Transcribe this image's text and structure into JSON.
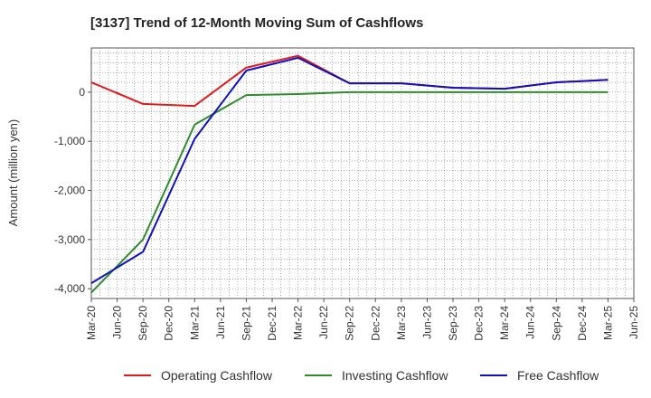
{
  "chart_data": {
    "type": "line",
    "title": "[3137]  Trend of 12-Month Moving Sum of Cashflows",
    "ylabel": "Amount (million yen)",
    "xlabel": "",
    "ylim": [
      -4200,
      900
    ],
    "y_ticks": [
      0,
      -1000,
      -2000,
      -3000,
      -4000
    ],
    "y_tick_labels": [
      "0",
      "-1,000",
      "-2,000",
      "-3,000",
      "-4,000"
    ],
    "x_tick_labels": [
      "Mar-20",
      "Jun-20",
      "Sep-20",
      "Dec-20",
      "Mar-21",
      "Jun-21",
      "Sep-21",
      "Dec-21",
      "Mar-22",
      "Jun-22",
      "Sep-22",
      "Dec-22",
      "Mar-23",
      "Jun-23",
      "Sep-23",
      "Dec-23",
      "Mar-24",
      "Jun-24",
      "Sep-24",
      "Dec-24",
      "Mar-25",
      "Jun-25"
    ],
    "grid": true,
    "legend_position": "bottom",
    "series": [
      {
        "name": "Operating Cashflow",
        "color": "#e31a1c",
        "x": [
          "Mar-20",
          "Sep-20",
          "Mar-21",
          "Sep-21",
          "Mar-22",
          "Sep-22",
          "Mar-23",
          "Sep-23",
          "Mar-24",
          "Sep-24",
          "Mar-25"
        ],
        "values": [
          200,
          -240,
          -280,
          500,
          740,
          180,
          180,
          90,
          70,
          200,
          250
        ]
      },
      {
        "name": "Investing Cashflow",
        "color": "#2e8b2e",
        "x": [
          "Mar-20",
          "Sep-20",
          "Mar-21",
          "Sep-21",
          "Mar-22",
          "Sep-22",
          "Mar-23",
          "Sep-23",
          "Mar-24",
          "Sep-24",
          "Mar-25"
        ],
        "values": [
          -4080,
          -3000,
          -660,
          -60,
          -40,
          0,
          0,
          0,
          0,
          0,
          0
        ]
      },
      {
        "name": "Free Cashflow",
        "color": "#1010c0",
        "x": [
          "Mar-20",
          "Sep-20",
          "Mar-21",
          "Sep-21",
          "Mar-22",
          "Sep-22",
          "Mar-23",
          "Sep-23",
          "Mar-24",
          "Sep-24",
          "Mar-25"
        ],
        "values": [
          -3890,
          -3250,
          -950,
          440,
          700,
          180,
          180,
          90,
          70,
          200,
          250
        ]
      }
    ]
  }
}
